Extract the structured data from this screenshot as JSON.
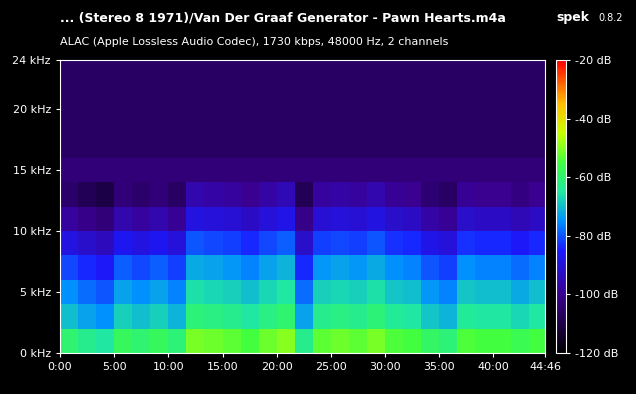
{
  "chart_data": {
    "type": "spectrogram",
    "title": "... (Stereo 8 1971)/Van Der Graaf Generator - Pawn Hearts.m4a",
    "app_name": "spek",
    "app_version": "0.8.2",
    "subtitle": "ALAC (Apple Lossless Audio Codec), 1730 kbps, 48000 Hz, 2 channels",
    "xlim": [
      0,
      2686
    ],
    "xticks": [
      {
        "value": 0,
        "label": "0:00"
      },
      {
        "value": 300,
        "label": "5:00"
      },
      {
        "value": 600,
        "label": "10:00"
      },
      {
        "value": 900,
        "label": "15:00"
      },
      {
        "value": 1200,
        "label": "20:00"
      },
      {
        "value": 1500,
        "label": "25:00"
      },
      {
        "value": 1800,
        "label": "30:00"
      },
      {
        "value": 2100,
        "label": "35:00"
      },
      {
        "value": 2400,
        "label": "40:00"
      },
      {
        "value": 2686,
        "label": "44:46"
      }
    ],
    "ylim": [
      0,
      24
    ],
    "yticks": [
      {
        "value": 0,
        "label": "0 kHz"
      },
      {
        "value": 5,
        "label": "5 kHz"
      },
      {
        "value": 10,
        "label": "10 kHz"
      },
      {
        "value": 15,
        "label": "15 kHz"
      },
      {
        "value": 20,
        "label": "20 kHz"
      },
      {
        "value": 24,
        "label": "24 kHz"
      }
    ],
    "time_bins": [
      0,
      100,
      200,
      300,
      400,
      500,
      600,
      700,
      800,
      900,
      1000,
      1100,
      1200,
      1300,
      1400,
      1500,
      1600,
      1700,
      1800,
      1900,
      2000,
      2100,
      2200,
      2300,
      2400,
      2500,
      2600,
      2686
    ],
    "freq_bins": [
      0,
      2,
      4,
      6,
      8,
      10,
      12,
      14,
      16,
      18,
      20,
      22,
      24
    ],
    "cells": [
      [
        -60,
        -63,
        -65,
        -58,
        -60,
        -58,
        -61,
        -51,
        -52,
        -53,
        -55,
        -52,
        -50,
        -63,
        -53,
        -52,
        -53,
        -51,
        -54,
        -55,
        -59,
        -61,
        -54,
        -55,
        -55,
        -57,
        -55
      ],
      [
        -70,
        -73,
        -75,
        -68,
        -70,
        -68,
        -71,
        -61,
        -62,
        -63,
        -65,
        -62,
        -60,
        -73,
        -63,
        -62,
        -63,
        -61,
        -64,
        -65,
        -69,
        -71,
        -64,
        -65,
        -65,
        -67,
        -65
      ],
      [
        -75,
        -78,
        -80,
        -73,
        -75,
        -73,
        -76,
        -66,
        -67,
        -68,
        -70,
        -67,
        -65,
        -78,
        -68,
        -67,
        -68,
        -66,
        -69,
        -70,
        -74,
        -76,
        -69,
        -70,
        -70,
        -72,
        -70
      ],
      [
        -81,
        -84,
        -86,
        -79,
        -81,
        -79,
        -82,
        -72,
        -73,
        -74,
        -76,
        -73,
        -71,
        -84,
        -74,
        -73,
        -74,
        -72,
        -75,
        -76,
        -80,
        -82,
        -75,
        -76,
        -76,
        -78,
        -76
      ],
      [
        -89,
        -92,
        -94,
        -87,
        -89,
        -87,
        -90,
        -80,
        -81,
        -82,
        -84,
        -81,
        -79,
        -92,
        -82,
        -81,
        -82,
        -80,
        -83,
        -84,
        -88,
        -90,
        -83,
        -84,
        -84,
        -86,
        -84
      ],
      [
        -98,
        -101,
        -103,
        -96,
        -98,
        -96,
        -99,
        -89,
        -90,
        -91,
        -93,
        -90,
        -88,
        -101,
        -91,
        -90,
        -91,
        -89,
        -92,
        -93,
        -97,
        -99,
        -92,
        -93,
        -93,
        -95,
        -93
      ],
      [
        -105,
        -108,
        -110,
        -103,
        -105,
        -103,
        -106,
        -96,
        -97,
        -98,
        -100,
        -97,
        -95,
        -108,
        -98,
        -97,
        -98,
        -96,
        -99,
        -100,
        -104,
        -106,
        -99,
        -100,
        -100,
        -102,
        -100
      ],
      [
        -103,
        -103,
        -103,
        -103,
        -103,
        -103,
        -103,
        -103,
        -103,
        -103,
        -103,
        -103,
        -103,
        -103,
        -103,
        -103,
        -103,
        -103,
        -103,
        -103,
        -103,
        -103,
        -103,
        -103,
        -103,
        -103,
        -103
      ],
      [
        -106,
        -106,
        -106,
        -106,
        -106,
        -106,
        -106,
        -106,
        -106,
        -106,
        -106,
        -106,
        -106,
        -106,
        -106,
        -106,
        -106,
        -106,
        -106,
        -106,
        -106,
        -106,
        -106,
        -106,
        -106,
        -106,
        -106
      ],
      [
        -106,
        -106,
        -106,
        -106,
        -106,
        -106,
        -106,
        -106,
        -106,
        -106,
        -106,
        -106,
        -106,
        -106,
        -106,
        -106,
        -106,
        -106,
        -106,
        -106,
        -106,
        -106,
        -106,
        -106,
        -106,
        -106,
        -106
      ],
      [
        -106,
        -106,
        -106,
        -106,
        -106,
        -106,
        -106,
        -106,
        -106,
        -106,
        -106,
        -106,
        -106,
        -106,
        -106,
        -106,
        -106,
        -106,
        -106,
        -106,
        -106,
        -106,
        -106,
        -106,
        -106,
        -106,
        -106
      ],
      [
        -106,
        -106,
        -106,
        -106,
        -106,
        -106,
        -106,
        -106,
        -106,
        -106,
        -106,
        -106,
        -106,
        -106,
        -106,
        -106,
        -106,
        -106,
        -106,
        -106,
        -106,
        -106,
        -106,
        -106,
        -106,
        -106,
        -106
      ]
    ],
    "colorbar_range": [
      -120,
      -20
    ],
    "colorbar_ticks": [
      {
        "value": -20,
        "label": "-20 dB"
      },
      {
        "value": -40,
        "label": "-40 dB"
      },
      {
        "value": -60,
        "label": "-60 dB"
      },
      {
        "value": -80,
        "label": "-80 dB"
      },
      {
        "value": -100,
        "label": "-100 dB"
      },
      {
        "value": -120,
        "label": "-120 dB"
      }
    ]
  }
}
